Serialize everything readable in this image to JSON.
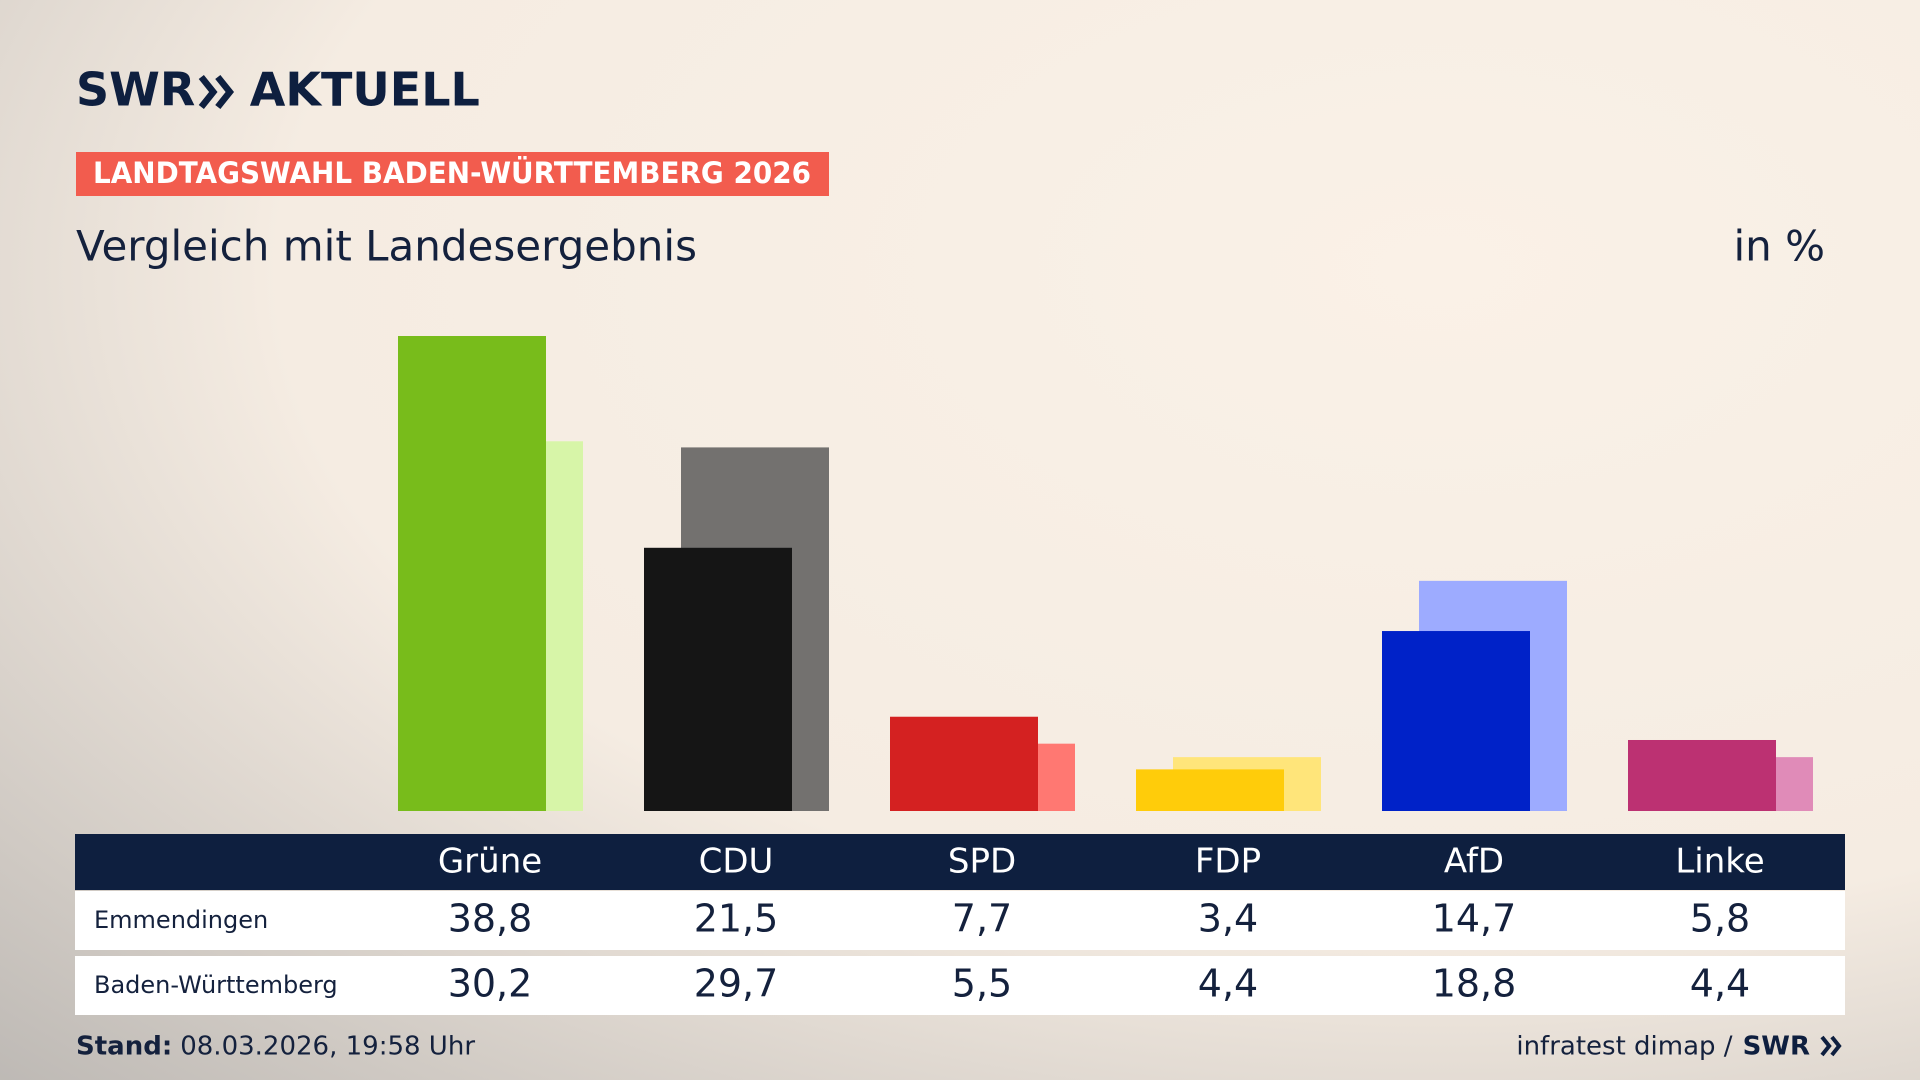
{
  "header": {
    "brand": "SWR",
    "brand_suffix": "AKTUELL",
    "banner": "LANDTAGSWAHL BADEN-WÜRTTEMBERG 2026"
  },
  "chart_data": {
    "type": "bar",
    "title": "Vergleich mit Landesergebnis",
    "unit": "in %",
    "categories": [
      "Grüne",
      "CDU",
      "SPD",
      "FDP",
      "AfD",
      "Linke"
    ],
    "series": [
      {
        "name": "Emmendingen",
        "colors": [
          "#78bc1b",
          "#151515",
          "#d42121",
          "#ffcc0a",
          "#0022c8",
          "#bc3172"
        ],
        "values": [
          38.8,
          21.5,
          7.7,
          3.4,
          14.7,
          5.8
        ],
        "value_labels": [
          "38,8",
          "21,5",
          "7,7",
          "3,4",
          "14,7",
          "5,8"
        ]
      },
      {
        "name": "Baden-Württemberg",
        "colors": [
          "#d7f5a8",
          "#73716f",
          "#ff7872",
          "#ffe57a",
          "#9dabff",
          "#e08bb8"
        ],
        "values": [
          30.2,
          29.7,
          5.5,
          4.4,
          18.8,
          4.4
        ],
        "value_labels": [
          "30,2",
          "29,7",
          "5,5",
          "4,4",
          "18,8",
          "4,4"
        ]
      }
    ]
  },
  "footer": {
    "stand_label": "Stand:",
    "stand": "08.03.2026, 19:58 Uhr",
    "source": "infratest dimap /",
    "brand": "SWR"
  }
}
